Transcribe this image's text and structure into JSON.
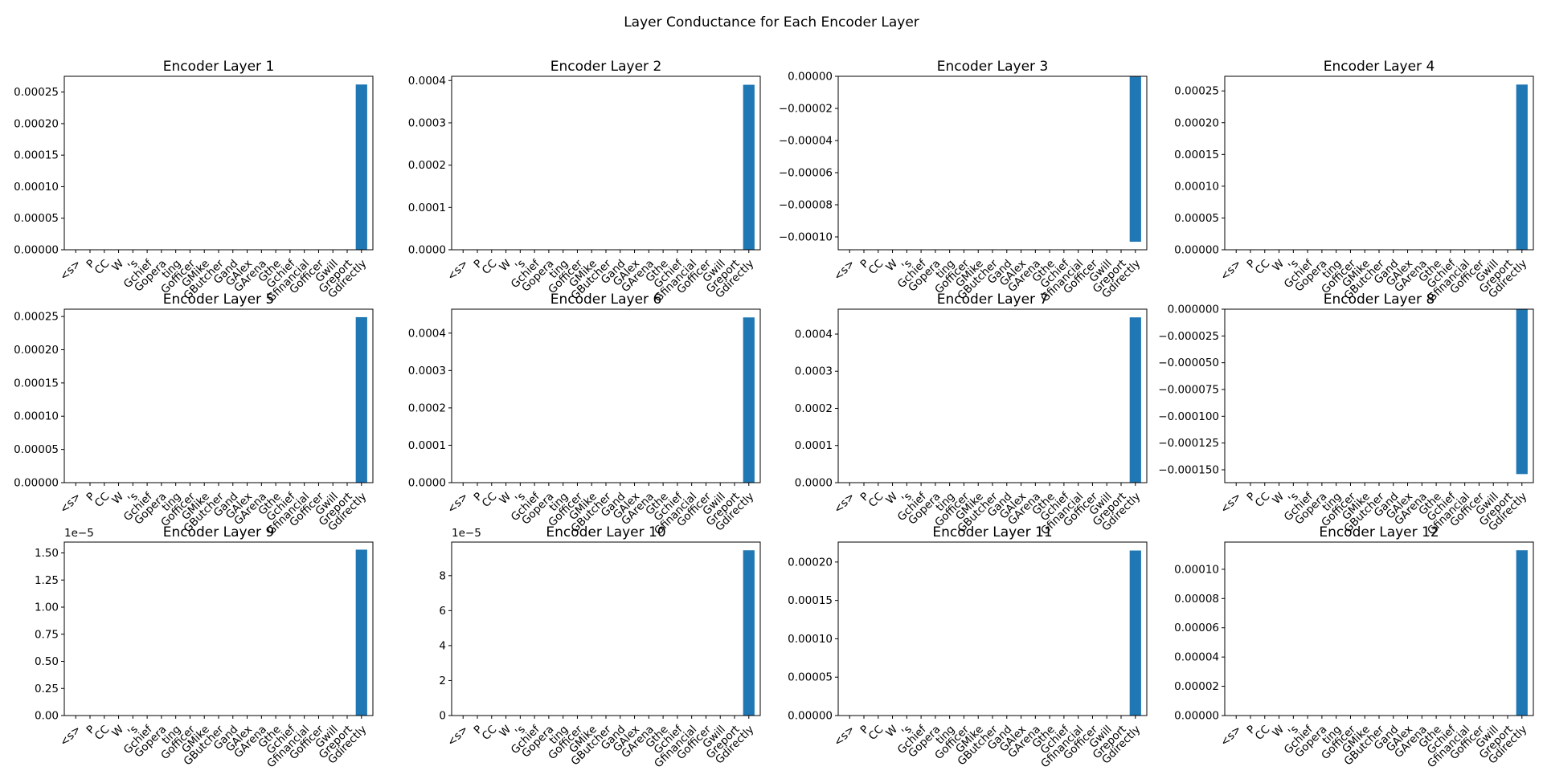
{
  "chart_data": {
    "type": "bar",
    "title": "Layer Conductance for Each Encoder Layer",
    "categories": [
      "<s>",
      "P",
      "CC",
      "W",
      "'s",
      "Gchief",
      "Gopera",
      "ting",
      "Gofficer",
      "GMike",
      "GButcher",
      "Gand",
      "GAlex",
      "GArena",
      "Gthe",
      "Gchief",
      "Gfinancial",
      "Gofficer",
      "Gwill",
      "Greport",
      "Gdirectly"
    ],
    "bar_color": "#1f77b4",
    "subplots": [
      {
        "title": "Encoder Layer 1",
        "values": [
          0,
          0,
          0,
          0,
          0,
          0,
          0,
          0,
          0,
          0,
          0,
          0,
          0,
          0,
          0,
          0,
          0,
          0,
          0,
          0,
          0.000262
        ],
        "ylim": [
          0,
          0.000275
        ],
        "yticks": [
          0,
          5e-05,
          0.0001,
          0.00015,
          0.0002,
          0.00025
        ],
        "ytick_labels": [
          "0.00000",
          "0.00005",
          "0.00010",
          "0.00015",
          "0.00020",
          "0.00025"
        ],
        "offset": ""
      },
      {
        "title": "Encoder Layer 2",
        "values": [
          0,
          0,
          0,
          0,
          0,
          0,
          0,
          0,
          0,
          0,
          0,
          0,
          0,
          0,
          0,
          0,
          0,
          0,
          0,
          0,
          0.00039
        ],
        "ylim": [
          0,
          0.00041
        ],
        "yticks": [
          0,
          0.0001,
          0.0002,
          0.0003,
          0.0004
        ],
        "ytick_labels": [
          "0.0000",
          "0.0001",
          "0.0002",
          "0.0003",
          "0.0004"
        ],
        "offset": ""
      },
      {
        "title": "Encoder Layer 3",
        "values": [
          0,
          0,
          0,
          0,
          0,
          0,
          0,
          0,
          0,
          0,
          0,
          0,
          0,
          0,
          0,
          0,
          0,
          0,
          0,
          0,
          -0.000103
        ],
        "ylim": [
          -0.000108,
          0
        ],
        "yticks": [
          0,
          -2e-05,
          -4e-05,
          -6e-05,
          -8e-05,
          -0.0001
        ],
        "ytick_labels": [
          "0.00000",
          "−0.00002",
          "−0.00004",
          "−0.00006",
          "−0.00008",
          "−0.00010"
        ],
        "offset": ""
      },
      {
        "title": "Encoder Layer 4",
        "values": [
          0,
          0,
          0,
          0,
          0,
          0,
          0,
          0,
          0,
          0,
          0,
          0,
          0,
          0,
          0,
          0,
          0,
          0,
          0,
          0,
          0.00026
        ],
        "ylim": [
          0,
          0.000273
        ],
        "yticks": [
          0,
          5e-05,
          0.0001,
          0.00015,
          0.0002,
          0.00025
        ],
        "ytick_labels": [
          "0.00000",
          "0.00005",
          "0.00010",
          "0.00015",
          "0.00020",
          "0.00025"
        ],
        "offset": ""
      },
      {
        "title": "Encoder Layer 5",
        "values": [
          0,
          0,
          0,
          0,
          0,
          0,
          0,
          0,
          0,
          0,
          0,
          0,
          0,
          0,
          0,
          0,
          0,
          0,
          0,
          0,
          0.000249
        ],
        "ylim": [
          0,
          0.000261
        ],
        "yticks": [
          0,
          5e-05,
          0.0001,
          0.00015,
          0.0002,
          0.00025
        ],
        "ytick_labels": [
          "0.00000",
          "0.00005",
          "0.00010",
          "0.00015",
          "0.00020",
          "0.00025"
        ],
        "offset": ""
      },
      {
        "title": "Encoder Layer 6",
        "values": [
          0,
          0,
          0,
          0,
          0,
          0,
          0,
          0,
          0,
          0,
          0,
          0,
          0,
          0,
          0,
          0,
          0,
          0,
          0,
          0,
          0.000442
        ],
        "ylim": [
          0,
          0.000464
        ],
        "yticks": [
          0,
          0.0001,
          0.0002,
          0.0003,
          0.0004
        ],
        "ytick_labels": [
          "0.0000",
          "0.0001",
          "0.0002",
          "0.0003",
          "0.0004"
        ],
        "offset": ""
      },
      {
        "title": "Encoder Layer 7",
        "values": [
          0,
          0,
          0,
          0,
          0,
          0,
          0,
          0,
          0,
          0,
          0,
          0,
          0,
          0,
          0,
          0,
          0,
          0,
          0,
          0,
          0.000445
        ],
        "ylim": [
          0,
          0.000467
        ],
        "yticks": [
          0,
          0.0001,
          0.0002,
          0.0003,
          0.0004
        ],
        "ytick_labels": [
          "0.0000",
          "0.0001",
          "0.0002",
          "0.0003",
          "0.0004"
        ],
        "offset": ""
      },
      {
        "title": "Encoder Layer 8",
        "values": [
          0,
          0,
          0,
          0,
          0,
          0,
          0,
          0,
          0,
          0,
          0,
          0,
          0,
          0,
          0,
          0,
          0,
          0,
          0,
          0,
          -0.000154
        ],
        "ylim": [
          -0.000162,
          0
        ],
        "yticks": [
          0,
          -2.5e-05,
          -5e-05,
          -7.5e-05,
          -0.0001,
          -0.000125,
          -0.00015
        ],
        "ytick_labels": [
          "0.000000",
          "−0.000025",
          "−0.000050",
          "−0.000075",
          "−0.000100",
          "−0.000125",
          "−0.000150"
        ],
        "offset": ""
      },
      {
        "title": "Encoder Layer 9",
        "values": [
          0,
          0,
          0,
          0,
          0,
          0,
          0,
          0,
          0,
          0,
          0,
          0,
          0,
          0,
          0,
          0,
          0,
          0,
          0,
          0,
          1.53
        ],
        "ylim": [
          0,
          1.6
        ],
        "yticks": [
          0,
          0.25,
          0.5,
          0.75,
          1.0,
          1.25,
          1.5
        ],
        "ytick_labels": [
          "0.00",
          "0.25",
          "0.50",
          "0.75",
          "1.00",
          "1.25",
          "1.50"
        ],
        "offset": "1e−5"
      },
      {
        "title": "Encoder Layer 10",
        "values": [
          0,
          0,
          0,
          0,
          0,
          0,
          0,
          0,
          0,
          0,
          0,
          0,
          0,
          0,
          0,
          0,
          0,
          0,
          0,
          0,
          9.45
        ],
        "ylim": [
          0,
          9.92
        ],
        "yticks": [
          0,
          2,
          4,
          6,
          8
        ],
        "ytick_labels": [
          "0",
          "2",
          "4",
          "6",
          "8"
        ],
        "offset": "1e−5"
      },
      {
        "title": "Encoder Layer 11",
        "values": [
          0,
          0,
          0,
          0,
          0,
          0,
          0,
          0,
          0,
          0,
          0,
          0,
          0,
          0,
          0,
          0,
          0,
          0,
          0,
          0,
          0.000215
        ],
        "ylim": [
          0,
          0.000226
        ],
        "yticks": [
          0,
          5e-05,
          0.0001,
          0.00015,
          0.0002
        ],
        "ytick_labels": [
          "0.00000",
          "0.00005",
          "0.00010",
          "0.00015",
          "0.00020"
        ],
        "offset": ""
      },
      {
        "title": "Encoder Layer 12",
        "values": [
          0,
          0,
          0,
          0,
          0,
          0,
          0,
          0,
          0,
          0,
          0,
          0,
          0,
          0,
          0,
          0,
          0,
          0,
          0,
          0,
          0.000113
        ],
        "ylim": [
          0,
          0.0001186
        ],
        "yticks": [
          0,
          2e-05,
          4e-05,
          6e-05,
          8e-05,
          0.0001
        ],
        "ytick_labels": [
          "0.00000",
          "0.00002",
          "0.00004",
          "0.00006",
          "0.00008",
          "0.00010"
        ],
        "offset": ""
      }
    ]
  }
}
